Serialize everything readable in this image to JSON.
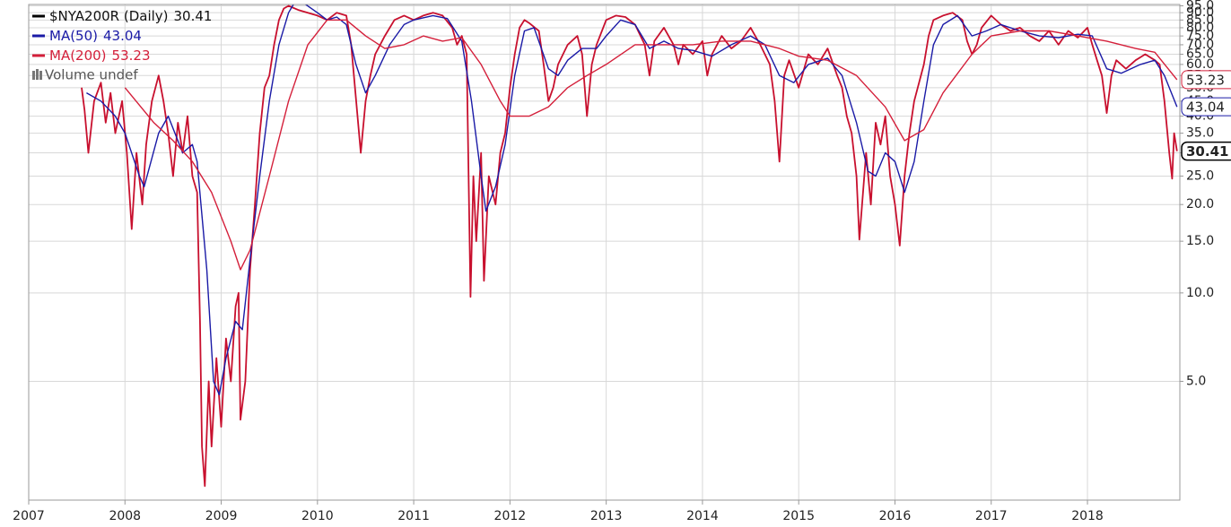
{
  "chart_data": {
    "type": "line",
    "y_scale": "log",
    "grid": true,
    "legend_position": "top-left",
    "volume_label": "Volume undef",
    "xlim": [
      2007,
      2018.96
    ],
    "xticks": [
      2007,
      2008,
      2009,
      2010,
      2011,
      2012,
      2013,
      2014,
      2015,
      2016,
      2017,
      2018
    ],
    "ylim": [
      1.97,
      96
    ],
    "yticks": [
      {
        "value": 5,
        "label": "5.0"
      },
      {
        "value": 10,
        "label": "10.0"
      },
      {
        "value": 15,
        "label": "15.0"
      },
      {
        "value": 20,
        "label": "20.0"
      },
      {
        "value": 25,
        "label": "25.0"
      },
      {
        "value": 30,
        "label": "30.0"
      },
      {
        "value": 35,
        "label": "35.0"
      },
      {
        "value": 40,
        "label": "40.0"
      },
      {
        "value": 45,
        "label": "45.0"
      },
      {
        "value": 50,
        "label": "50.0"
      },
      {
        "value": 55,
        "label": "55.0"
      },
      {
        "value": 60,
        "label": "60.0"
      },
      {
        "value": 65,
        "label": "65.0"
      },
      {
        "value": 70,
        "label": "70.0"
      },
      {
        "value": 75,
        "label": "75.0"
      },
      {
        "value": 80,
        "label": "80.0"
      },
      {
        "value": 85,
        "label": "85.0"
      },
      {
        "value": 90,
        "label": "90.0"
      },
      {
        "value": 95,
        "label": "95.0"
      }
    ],
    "series": [
      {
        "name": "$NYA200R (Daily)",
        "color": "#c8102e",
        "legend_color": "#000000",
        "tag_color": "#000000",
        "x": [
          2007.55,
          2007.58,
          2007.62,
          2007.68,
          2007.75,
          2007.8,
          2007.85,
          2007.9,
          2007.97,
          2008.02,
          2008.07,
          2008.12,
          2008.18,
          2008.22,
          2008.28,
          2008.35,
          2008.4,
          2008.45,
          2008.5,
          2008.55,
          2008.6,
          2008.65,
          2008.7,
          2008.75,
          2008.78,
          2008.8,
          2008.83,
          2008.87,
          2008.9,
          2008.95,
          2009.0,
          2009.05,
          2009.1,
          2009.15,
          2009.18,
          2009.2,
          2009.25,
          2009.3,
          2009.35,
          2009.4,
          2009.45,
          2009.5,
          2009.55,
          2009.6,
          2009.65,
          2009.7,
          2009.8,
          2009.9,
          2010.0,
          2010.1,
          2010.2,
          2010.3,
          2010.35,
          2010.4,
          2010.45,
          2010.5,
          2010.55,
          2010.6,
          2010.7,
          2010.8,
          2010.9,
          2011.0,
          2011.1,
          2011.2,
          2011.3,
          2011.4,
          2011.45,
          2011.5,
          2011.55,
          2011.59,
          2011.62,
          2011.65,
          2011.7,
          2011.73,
          2011.78,
          2011.85,
          2011.9,
          2011.95,
          2012.0,
          2012.05,
          2012.1,
          2012.15,
          2012.2,
          2012.3,
          2012.35,
          2012.4,
          2012.45,
          2012.5,
          2012.6,
          2012.7,
          2012.75,
          2012.8,
          2012.85,
          2012.9,
          2013.0,
          2013.1,
          2013.2,
          2013.3,
          2013.4,
          2013.45,
          2013.5,
          2013.6,
          2013.7,
          2013.75,
          2013.8,
          2013.9,
          2014.0,
          2014.05,
          2014.1,
          2014.2,
          2014.3,
          2014.4,
          2014.5,
          2014.6,
          2014.7,
          2014.75,
          2014.8,
          2014.85,
          2014.9,
          2015.0,
          2015.1,
          2015.2,
          2015.3,
          2015.4,
          2015.45,
          2015.5,
          2015.55,
          2015.6,
          2015.63,
          2015.7,
          2015.75,
          2015.8,
          2015.85,
          2015.9,
          2015.95,
          2016.0,
          2016.05,
          2016.1,
          2016.15,
          2016.2,
          2016.3,
          2016.35,
          2016.4,
          2016.5,
          2016.6,
          2016.7,
          2016.75,
          2016.8,
          2016.85,
          2016.9,
          2017.0,
          2017.1,
          2017.2,
          2017.3,
          2017.4,
          2017.5,
          2017.6,
          2017.7,
          2017.75,
          2017.8,
          2017.9,
          2018.0,
          2018.05,
          2018.1,
          2018.15,
          2018.2,
          2018.25,
          2018.3,
          2018.4,
          2018.5,
          2018.6,
          2018.7,
          2018.75,
          2018.8,
          2018.85,
          2018.88,
          2018.9,
          2018.93
        ],
        "values": [
          50,
          42,
          30,
          45,
          52,
          38,
          48,
          35,
          45,
          30,
          16.5,
          30,
          20,
          32,
          45,
          55,
          45,
          35,
          25,
          38,
          30,
          40,
          25,
          22,
          8,
          3,
          2.2,
          5,
          3,
          6,
          3.5,
          7,
          5,
          9,
          10,
          3.7,
          5,
          12,
          20,
          35,
          50,
          55,
          70,
          85,
          93,
          95,
          92,
          90,
          88,
          85,
          90,
          88,
          70,
          46,
          30,
          45,
          55,
          65,
          75,
          85,
          88,
          85,
          88,
          90,
          88,
          80,
          70,
          75,
          65,
          9.7,
          25,
          15,
          30,
          11,
          25,
          20,
          30,
          35,
          50,
          65,
          80,
          85,
          83,
          78,
          60,
          45,
          50,
          60,
          70,
          75,
          65,
          40,
          60,
          70,
          85,
          88,
          87,
          82,
          70,
          55,
          72,
          80,
          70,
          60,
          70,
          65,
          72,
          55,
          65,
          75,
          68,
          72,
          80,
          70,
          60,
          45,
          28,
          55,
          62,
          50,
          65,
          60,
          68,
          55,
          50,
          40,
          35,
          25,
          15.2,
          30,
          20,
          38,
          32,
          40,
          25,
          20,
          14.5,
          25,
          35,
          45,
          60,
          75,
          85,
          88,
          90,
          85,
          72,
          65,
          70,
          80,
          88,
          82,
          78,
          80,
          75,
          72,
          78,
          70,
          74,
          78,
          74,
          80,
          70,
          62,
          55,
          41,
          55,
          62,
          58,
          62,
          65,
          62,
          60,
          45,
          30,
          24.5,
          35,
          30.41
        ]
      },
      {
        "name": "MA(50)",
        "color": "#1a1aa6",
        "x": [
          2007.6,
          2007.75,
          2007.9,
          2008.0,
          2008.15,
          2008.2,
          2008.35,
          2008.45,
          2008.6,
          2008.7,
          2008.75,
          2008.85,
          2008.92,
          2008.98,
          2009.05,
          2009.15,
          2009.22,
          2009.3,
          2009.4,
          2009.5,
          2009.6,
          2009.7,
          2009.75,
          2009.8,
          2010.0,
          2010.1,
          2010.2,
          2010.3,
          2010.4,
          2010.5,
          2010.6,
          2010.75,
          2010.9,
          2011.0,
          2011.2,
          2011.35,
          2011.5,
          2011.6,
          2011.7,
          2011.75,
          2011.85,
          2011.95,
          2012.05,
          2012.15,
          2012.25,
          2012.4,
          2012.5,
          2012.6,
          2012.75,
          2012.9,
          2013.0,
          2013.15,
          2013.3,
          2013.45,
          2013.6,
          2013.75,
          2013.9,
          2014.1,
          2014.3,
          2014.5,
          2014.65,
          2014.8,
          2014.95,
          2015.1,
          2015.3,
          2015.45,
          2015.6,
          2015.72,
          2015.8,
          2015.9,
          2016.0,
          2016.1,
          2016.2,
          2016.3,
          2016.4,
          2016.5,
          2016.65,
          2016.8,
          2016.95,
          2017.1,
          2017.3,
          2017.5,
          2017.7,
          2017.9,
          2018.05,
          2018.2,
          2018.35,
          2018.55,
          2018.7,
          2018.8,
          2018.93
        ],
        "values": [
          48,
          45,
          40,
          35,
          25,
          23,
          35,
          40,
          30,
          32,
          28,
          12,
          5,
          4.5,
          6,
          8,
          7.5,
          13,
          25,
          45,
          70,
          90,
          96,
          100,
          90,
          85,
          87,
          82,
          60,
          48,
          55,
          70,
          82,
          85,
          88,
          86,
          72,
          45,
          25,
          19,
          23,
          32,
          55,
          78,
          80,
          58,
          55,
          62,
          68,
          68,
          75,
          85,
          82,
          68,
          72,
          68,
          67,
          64,
          70,
          75,
          70,
          55,
          52,
          60,
          63,
          55,
          38,
          26,
          25,
          30,
          28,
          22,
          28,
          45,
          70,
          82,
          88,
          75,
          78,
          82,
          78,
          75,
          74,
          76,
          75,
          58,
          56,
          60,
          62,
          55,
          43.04
        ]
      },
      {
        "name": "MA(200)",
        "color": "#d41f3a",
        "x": [
          2008.0,
          2008.3,
          2008.5,
          2008.7,
          2008.9,
          2009.1,
          2009.2,
          2009.3,
          2009.5,
          2009.7,
          2009.9,
          2010.1,
          2010.3,
          2010.5,
          2010.7,
          2010.9,
          2011.1,
          2011.3,
          2011.5,
          2011.7,
          2011.9,
          2012.0,
          2012.2,
          2012.4,
          2012.6,
          2012.8,
          2013.0,
          2013.3,
          2013.6,
          2013.9,
          2014.2,
          2014.5,
          2014.8,
          2015.0,
          2015.3,
          2015.6,
          2015.9,
          2016.1,
          2016.3,
          2016.5,
          2016.8,
          2017.0,
          2017.3,
          2017.6,
          2017.9,
          2018.2,
          2018.5,
          2018.7,
          2018.93
        ],
        "values": [
          50,
          38,
          33,
          28,
          22,
          15,
          12,
          14,
          25,
          45,
          70,
          85,
          85,
          75,
          68,
          70,
          75,
          72,
          74,
          60,
          45,
          40,
          40,
          43,
          50,
          55,
          60,
          70,
          70,
          70,
          72,
          72,
          68,
          64,
          62,
          55,
          43,
          33,
          36,
          48,
          65,
          75,
          78,
          78,
          75,
          72,
          68,
          66,
          53.23
        ]
      }
    ]
  }
}
